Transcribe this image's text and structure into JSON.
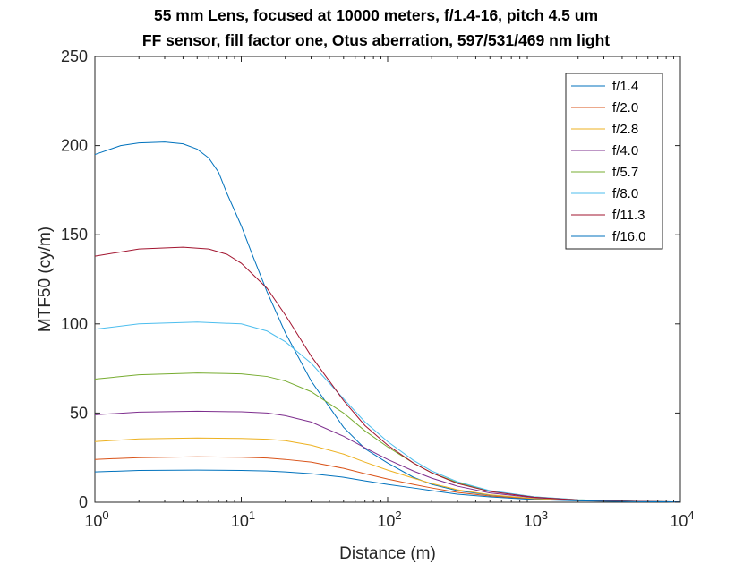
{
  "chart_data": {
    "type": "line",
    "title": "55 mm Lens, focused at 10000 meters, f/1.4-16, pitch 4.5 um",
    "subtitle": "FF sensor, fill factor one, Otus aberration, 597/531/469 nm light",
    "xlabel": "Distance (m)",
    "ylabel": "MTF50 (cy/m)",
    "xscale": "log",
    "xlim": [
      1,
      10000
    ],
    "ylim": [
      0,
      250
    ],
    "grid": false,
    "legend_position": "top-right",
    "x_ticks": [
      {
        "base": "10",
        "exp": "0"
      },
      {
        "base": "10",
        "exp": "1"
      },
      {
        "base": "10",
        "exp": "2"
      },
      {
        "base": "10",
        "exp": "3"
      },
      {
        "base": "10",
        "exp": "4"
      }
    ],
    "x_tick_values": [
      1,
      10,
      100,
      1000,
      10000
    ],
    "y_ticks": [
      "0",
      "50",
      "100",
      "150",
      "200",
      "250"
    ],
    "y_tick_values": [
      0,
      50,
      100,
      150,
      200,
      250
    ],
    "series": [
      {
        "name": "f/1.4",
        "color": "#0072BD",
        "points": [
          [
            1,
            195
          ],
          [
            1.5,
            200
          ],
          [
            2,
            201.5
          ],
          [
            3,
            202
          ],
          [
            4,
            201
          ],
          [
            5,
            198
          ],
          [
            6,
            193
          ],
          [
            7,
            185
          ],
          [
            8,
            173
          ],
          [
            10,
            155
          ],
          [
            12,
            138
          ],
          [
            15,
            118
          ],
          [
            20,
            95
          ],
          [
            30,
            68
          ],
          [
            50,
            42
          ],
          [
            70,
            30
          ],
          [
            100,
            22
          ],
          [
            150,
            14
          ],
          [
            200,
            10
          ],
          [
            300,
            6.5
          ],
          [
            500,
            4
          ],
          [
            1000,
            2
          ],
          [
            2000,
            1
          ],
          [
            5000,
            0.4
          ],
          [
            10000,
            0.2
          ]
        ]
      },
      {
        "name": "f/2.0",
        "color": "#D95319",
        "points": [
          [
            1,
            24
          ],
          [
            2,
            25
          ],
          [
            5,
            25.5
          ],
          [
            10,
            25.2
          ],
          [
            15,
            24.8
          ],
          [
            20,
            24
          ],
          [
            30,
            22.5
          ],
          [
            50,
            19
          ],
          [
            70,
            16
          ],
          [
            100,
            13
          ],
          [
            150,
            10
          ],
          [
            200,
            8
          ],
          [
            300,
            5.5
          ],
          [
            500,
            3.5
          ],
          [
            1000,
            1.8
          ],
          [
            2000,
            0.9
          ],
          [
            5000,
            0.4
          ],
          [
            10000,
            0.2
          ]
        ]
      },
      {
        "name": "f/2.8",
        "color": "#EDB120",
        "points": [
          [
            1,
            34
          ],
          [
            2,
            35.5
          ],
          [
            5,
            36
          ],
          [
            10,
            35.8
          ],
          [
            15,
            35.3
          ],
          [
            20,
            34.5
          ],
          [
            30,
            32
          ],
          [
            50,
            27
          ],
          [
            70,
            22.5
          ],
          [
            100,
            18
          ],
          [
            150,
            13.5
          ],
          [
            200,
            10.5
          ],
          [
            300,
            7
          ],
          [
            500,
            4.2
          ],
          [
            1000,
            2.1
          ],
          [
            2000,
            1
          ],
          [
            5000,
            0.4
          ],
          [
            10000,
            0.2
          ]
        ]
      },
      {
        "name": "f/4.0",
        "color": "#7E2F8E",
        "points": [
          [
            1,
            49
          ],
          [
            2,
            50.5
          ],
          [
            5,
            51
          ],
          [
            10,
            50.7
          ],
          [
            15,
            50
          ],
          [
            20,
            48.5
          ],
          [
            30,
            45
          ],
          [
            50,
            37
          ],
          [
            70,
            30.5
          ],
          [
            100,
            24
          ],
          [
            150,
            17.5
          ],
          [
            200,
            13.5
          ],
          [
            300,
            9
          ],
          [
            500,
            5.2
          ],
          [
            1000,
            2.6
          ],
          [
            2000,
            1.2
          ],
          [
            5000,
            0.5
          ],
          [
            10000,
            0.2
          ]
        ]
      },
      {
        "name": "f/5.7",
        "color": "#77AC30",
        "points": [
          [
            1,
            69
          ],
          [
            2,
            71.5
          ],
          [
            5,
            72.5
          ],
          [
            10,
            72
          ],
          [
            15,
            70.5
          ],
          [
            20,
            68
          ],
          [
            30,
            62
          ],
          [
            50,
            50
          ],
          [
            70,
            40
          ],
          [
            100,
            31
          ],
          [
            150,
            22
          ],
          [
            200,
            16.5
          ],
          [
            300,
            11
          ],
          [
            500,
            6.3
          ],
          [
            1000,
            3
          ],
          [
            2000,
            1.4
          ],
          [
            5000,
            0.5
          ],
          [
            10000,
            0.2
          ]
        ]
      },
      {
        "name": "f/8.0",
        "color": "#4DBEEE",
        "points": [
          [
            1,
            97
          ],
          [
            2,
            100
          ],
          [
            5,
            101
          ],
          [
            10,
            100
          ],
          [
            15,
            96
          ],
          [
            20,
            90
          ],
          [
            30,
            78
          ],
          [
            50,
            58
          ],
          [
            70,
            45
          ],
          [
            100,
            34
          ],
          [
            150,
            23.5
          ],
          [
            200,
            17.5
          ],
          [
            300,
            11.5
          ],
          [
            500,
            6.5
          ],
          [
            1000,
            3.1
          ],
          [
            2000,
            1.4
          ],
          [
            5000,
            0.5
          ],
          [
            10000,
            0.2
          ]
        ]
      },
      {
        "name": "f/11.3",
        "color": "#A2142F",
        "points": [
          [
            1,
            138
          ],
          [
            2,
            142
          ],
          [
            4,
            143
          ],
          [
            6,
            142
          ],
          [
            8,
            139
          ],
          [
            10,
            134
          ],
          [
            15,
            120
          ],
          [
            20,
            105
          ],
          [
            30,
            82
          ],
          [
            50,
            57
          ],
          [
            70,
            43
          ],
          [
            100,
            32
          ],
          [
            150,
            22
          ],
          [
            200,
            16.5
          ],
          [
            300,
            10.5
          ],
          [
            500,
            6
          ],
          [
            1000,
            2.8
          ],
          [
            2000,
            1.3
          ],
          [
            5000,
            0.5
          ],
          [
            10000,
            0.2
          ]
        ]
      },
      {
        "name": "f/16.0",
        "color": "#0072BD",
        "points": [
          [
            1,
            17
          ],
          [
            2,
            17.8
          ],
          [
            5,
            18
          ],
          [
            10,
            17.8
          ],
          [
            15,
            17.5
          ],
          [
            20,
            17
          ],
          [
            30,
            16
          ],
          [
            50,
            14
          ],
          [
            70,
            12
          ],
          [
            100,
            10
          ],
          [
            150,
            8
          ],
          [
            200,
            6.5
          ],
          [
            300,
            4.5
          ],
          [
            500,
            3
          ],
          [
            1000,
            1.5
          ],
          [
            2000,
            0.8
          ],
          [
            5000,
            0.3
          ],
          [
            10000,
            0.2
          ]
        ]
      }
    ]
  }
}
